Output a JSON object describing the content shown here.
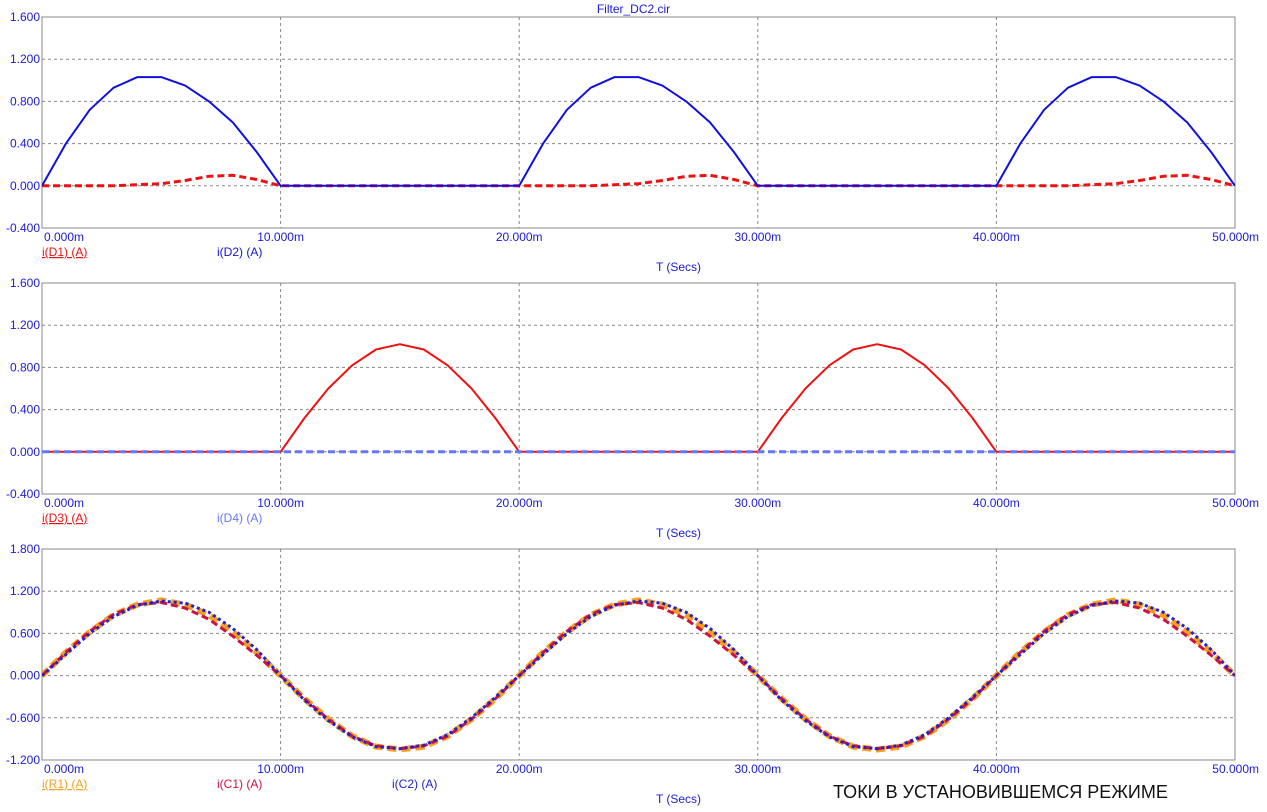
{
  "window": {
    "title": "Filter_DC2.cir"
  },
  "caption": "ТОКИ В УСТАНОВИВШЕМСЯ РЕЖИМЕ",
  "colors": {
    "axis_text": "#1a1adc",
    "grid": "#888888",
    "frame": "#888888"
  },
  "chart_data": [
    {
      "type": "line",
      "xlabel": "T (Secs)",
      "xlim": [
        0,
        50
      ],
      "x_tick_labels": [
        "0.000m",
        "10.000m",
        "20.000m",
        "30.000m",
        "40.000m",
        "50.000m"
      ],
      "ylim": [
        -0.4,
        1.6
      ],
      "y_tick_labels": [
        "1.600",
        "1.200",
        "0.800",
        "0.400",
        "0.000",
        "-0.400"
      ],
      "grid": true,
      "legend_labels": [
        "i(D1) (A)",
        "i(D2) (A)"
      ],
      "series": [
        {
          "name": "i(D1) (A)",
          "color": "#ee1111",
          "dash": "dashed",
          "x": [
            0,
            1,
            2,
            3,
            4,
            5,
            6,
            7,
            8,
            9,
            10,
            11,
            12,
            13,
            14,
            15,
            16,
            17,
            18,
            19,
            20,
            21,
            22,
            23,
            24,
            25,
            26,
            27,
            28,
            29,
            30,
            31,
            32,
            33,
            34,
            35,
            36,
            37,
            38,
            39,
            40,
            41,
            42,
            43,
            44,
            45,
            46,
            47,
            48,
            49,
            50
          ],
          "y": [
            0,
            0,
            0,
            0,
            0.01,
            0.02,
            0.05,
            0.09,
            0.1,
            0.06,
            0,
            0,
            0,
            0,
            0,
            0,
            0,
            0,
            0,
            0,
            0,
            0,
            0,
            0,
            0.01,
            0.02,
            0.05,
            0.09,
            0.1,
            0.06,
            0,
            0,
            0,
            0,
            0,
            0,
            0,
            0,
            0,
            0,
            0,
            0,
            0,
            0,
            0.01,
            0.02,
            0.05,
            0.09,
            0.1,
            0.06,
            0
          ]
        },
        {
          "name": "i(D2) (A)",
          "color": "#1111dd",
          "dash": "solid",
          "x": [
            0,
            1,
            2,
            3,
            4,
            5,
            6,
            7,
            8,
            9,
            10,
            11,
            12,
            13,
            14,
            15,
            16,
            17,
            18,
            19,
            20,
            21,
            22,
            23,
            24,
            25,
            26,
            27,
            28,
            29,
            30,
            31,
            32,
            33,
            34,
            35,
            36,
            37,
            38,
            39,
            40,
            41,
            42,
            43,
            44,
            45,
            46,
            47,
            48,
            49,
            50
          ],
          "y": [
            0,
            0.4,
            0.72,
            0.93,
            1.03,
            1.03,
            0.95,
            0.8,
            0.6,
            0.32,
            0,
            0,
            0,
            0,
            0,
            0,
            0,
            0,
            0,
            0,
            0,
            0.4,
            0.72,
            0.93,
            1.03,
            1.03,
            0.95,
            0.8,
            0.6,
            0.32,
            0,
            0,
            0,
            0,
            0,
            0,
            0,
            0,
            0,
            0,
            0,
            0.4,
            0.72,
            0.93,
            1.03,
            1.03,
            0.95,
            0.8,
            0.6,
            0.32,
            0
          ]
        }
      ]
    },
    {
      "type": "line",
      "xlabel": "T (Secs)",
      "xlim": [
        0,
        50
      ],
      "x_tick_labels": [
        "0.000m",
        "10.000m",
        "20.000m",
        "30.000m",
        "40.000m",
        "50.000m"
      ],
      "ylim": [
        -0.4,
        1.6
      ],
      "y_tick_labels": [
        "1.600",
        "1.200",
        "0.800",
        "0.400",
        "0.000",
        "-0.400"
      ],
      "grid": true,
      "legend_labels": [
        "i(D3) (A)",
        "i(D4) (A)"
      ],
      "series": [
        {
          "name": "i(D3) (A)",
          "color": "#ee1111",
          "dash": "solid",
          "x": [
            0,
            1,
            2,
            3,
            4,
            5,
            6,
            7,
            8,
            9,
            10,
            11,
            12,
            13,
            14,
            15,
            16,
            17,
            18,
            19,
            20,
            21,
            22,
            23,
            24,
            25,
            26,
            27,
            28,
            29,
            30,
            31,
            32,
            33,
            34,
            35,
            36,
            37,
            38,
            39,
            40,
            41,
            42,
            43,
            44,
            45,
            46,
            47,
            48,
            49,
            50
          ],
          "y": [
            0,
            0,
            0,
            0,
            0,
            0,
            0,
            0,
            0,
            0,
            0,
            0.32,
            0.6,
            0.82,
            0.97,
            1.02,
            0.97,
            0.82,
            0.6,
            0.32,
            0,
            0,
            0,
            0,
            0,
            0,
            0,
            0,
            0,
            0,
            0,
            0.32,
            0.6,
            0.82,
            0.97,
            1.02,
            0.97,
            0.82,
            0.6,
            0.32,
            0,
            0,
            0,
            0,
            0,
            0,
            0,
            0,
            0,
            0,
            0
          ]
        },
        {
          "name": "i(D4) (A)",
          "color": "#6677ff",
          "dash": "dashed",
          "x": [
            0,
            50
          ],
          "y": [
            0,
            0
          ]
        }
      ]
    },
    {
      "type": "line",
      "xlabel": "T (Secs)",
      "xlim": [
        0,
        50
      ],
      "x_tick_labels": [
        "0.000m",
        "10.000m",
        "20.000m",
        "30.000m",
        "40.000m",
        "50.000m"
      ],
      "ylim": [
        -1.2,
        1.8
      ],
      "y_tick_labels": [
        "1.800",
        "1.200",
        "0.600",
        "0.000",
        "-0.600",
        "-1.200"
      ],
      "grid": true,
      "legend_labels": [
        "i(R1) (A)",
        "i(C1) (A)",
        "i(C2) (A)"
      ],
      "series": [
        {
          "name": "i(R1) (A)",
          "color": "#f5a020",
          "dash": "thick-dashed",
          "x": [
            0,
            1,
            2,
            3,
            4,
            5,
            6,
            7,
            8,
            9,
            10,
            11,
            12,
            13,
            14,
            15,
            16,
            17,
            18,
            19,
            20,
            21,
            22,
            23,
            24,
            25,
            26,
            27,
            28,
            29,
            30,
            31,
            32,
            33,
            34,
            35,
            36,
            37,
            38,
            39,
            40,
            41,
            42,
            43,
            44,
            45,
            46,
            47,
            48,
            49,
            50
          ],
          "y": [
            0,
            0.33,
            0.62,
            0.86,
            1.01,
            1.07,
            1.01,
            0.86,
            0.62,
            0.33,
            0,
            -0.33,
            -0.62,
            -0.86,
            -1.01,
            -1.05,
            -1.01,
            -0.86,
            -0.62,
            -0.33,
            0,
            0.33,
            0.62,
            0.86,
            1.01,
            1.07,
            1.01,
            0.86,
            0.62,
            0.33,
            0,
            -0.33,
            -0.62,
            -0.86,
            -1.01,
            -1.05,
            -1.01,
            -0.86,
            -0.62,
            -0.33,
            0,
            0.33,
            0.62,
            0.86,
            1.01,
            1.07,
            1.01,
            0.86,
            0.62,
            0.33,
            0
          ]
        },
        {
          "name": "i(C1) (A)",
          "color": "#cc1144",
          "dash": "dashed",
          "x": [
            0,
            1,
            2,
            3,
            4,
            5,
            6,
            7,
            8,
            9,
            10,
            11,
            12,
            13,
            14,
            15,
            16,
            17,
            18,
            19,
            20,
            21,
            22,
            23,
            24,
            25,
            26,
            27,
            28,
            29,
            30,
            31,
            32,
            33,
            34,
            35,
            36,
            37,
            38,
            39,
            40,
            41,
            42,
            43,
            44,
            45,
            46,
            47,
            48,
            49,
            50
          ],
          "y": [
            0,
            0.33,
            0.63,
            0.87,
            1.01,
            1.04,
            0.96,
            0.8,
            0.56,
            0.29,
            0,
            -0.33,
            -0.62,
            -0.86,
            -1.0,
            -1.04,
            -1.0,
            -0.86,
            -0.62,
            -0.33,
            0,
            0.33,
            0.63,
            0.87,
            1.01,
            1.04,
            0.96,
            0.8,
            0.56,
            0.29,
            0,
            -0.33,
            -0.62,
            -0.86,
            -1.0,
            -1.04,
            -1.0,
            -0.86,
            -0.62,
            -0.33,
            0,
            0.33,
            0.63,
            0.87,
            1.01,
            1.04,
            0.96,
            0.8,
            0.56,
            0.29,
            0
          ]
        },
        {
          "name": "i(C2) (A)",
          "color": "#2222cc",
          "dash": "dotted",
          "x": [
            0,
            1,
            2,
            3,
            4,
            5,
            6,
            7,
            8,
            9,
            10,
            11,
            12,
            13,
            14,
            15,
            16,
            17,
            18,
            19,
            20,
            21,
            22,
            23,
            24,
            25,
            26,
            27,
            28,
            29,
            30,
            31,
            32,
            33,
            34,
            35,
            36,
            37,
            38,
            39,
            40,
            41,
            42,
            43,
            44,
            45,
            46,
            47,
            48,
            49,
            50
          ],
          "y": [
            0,
            0.3,
            0.6,
            0.84,
            1.0,
            1.06,
            1.03,
            0.9,
            0.67,
            0.37,
            0,
            -0.35,
            -0.64,
            -0.87,
            -1.01,
            -1.04,
            -0.99,
            -0.84,
            -0.6,
            -0.31,
            0,
            0.3,
            0.6,
            0.84,
            1.0,
            1.06,
            1.03,
            0.9,
            0.67,
            0.37,
            0,
            -0.35,
            -0.64,
            -0.87,
            -1.01,
            -1.04,
            -0.99,
            -0.84,
            -0.6,
            -0.31,
            0,
            0.3,
            0.6,
            0.84,
            1.0,
            1.06,
            1.03,
            0.9,
            0.67,
            0.37,
            0
          ]
        }
      ]
    }
  ]
}
